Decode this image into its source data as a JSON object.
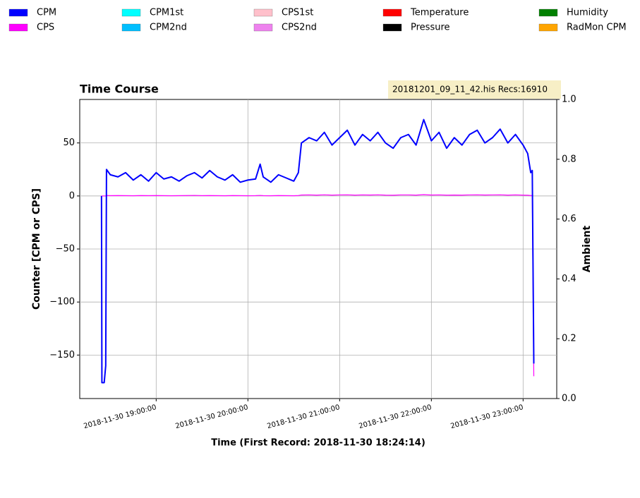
{
  "chart_data": {
    "type": "line",
    "title": "Time Course",
    "info": "20181201_09_11_42.his  Recs:16910",
    "xlabel": "Time (First Record: 2018-11-30 18:24:14)",
    "ylabel": "Counter  [CPM or CPS]",
    "y2label": "Ambient",
    "grid": true,
    "legend": [
      {
        "name": "CPM",
        "color": "#0000ff"
      },
      {
        "name": "CPS",
        "color": "#ff00ff"
      },
      {
        "name": "CPM1st",
        "color": "#00ffff"
      },
      {
        "name": "CPM2nd",
        "color": "#00bfff"
      },
      {
        "name": "CPS1st",
        "color": "#ffc0cb"
      },
      {
        "name": "CPS2nd",
        "color": "#ee82ee"
      },
      {
        "name": "Temperature",
        "color": "#ff0000"
      },
      {
        "name": "Pressure",
        "color": "#000000"
      },
      {
        "name": "Humidity",
        "color": "#008000"
      },
      {
        "name": "RadMon CPM",
        "color": "#ffa500"
      }
    ],
    "xlim": [
      "2018-11-30 18:10:00",
      "2018-11-30 23:22:00"
    ],
    "xticks": [
      {
        "value": "2018-11-30 19:00:00",
        "label": "2018-11-30  19:00:00"
      },
      {
        "value": "2018-11-30 20:00:00",
        "label": "2018-11-30  20:00:00"
      },
      {
        "value": "2018-11-30 21:00:00",
        "label": "2018-11-30  21:00:00"
      },
      {
        "value": "2018-11-30 22:00:00",
        "label": "2018-11-30  22:00:00"
      },
      {
        "value": "2018-11-30 23:00:00",
        "label": "2018-11-30  23:00:00"
      }
    ],
    "ylim": [
      -191,
      91
    ],
    "yticks": [
      {
        "value": -150,
        "label": "−150"
      },
      {
        "value": -100,
        "label": "−100"
      },
      {
        "value": -50,
        "label": "−50"
      },
      0,
      50
    ],
    "y2lim": [
      0,
      1
    ],
    "y2ticks": [
      {
        "value": 0,
        "label": "0.0"
      },
      {
        "value": 0.2,
        "label": "0.2"
      },
      {
        "value": 0.4,
        "label": "0.4"
      },
      {
        "value": 0.6,
        "label": "0.6"
      },
      {
        "value": 0.8,
        "label": "0.8"
      },
      {
        "value": 1,
        "label": "1.0"
      }
    ],
    "x": [
      "2018-11-30 18:24:14",
      "2018-11-30 18:24:30",
      "2018-11-30 18:26:00",
      "2018-11-30 18:27:00",
      "2018-11-30 18:27:30",
      "2018-11-30 18:30:00",
      "2018-11-30 18:35:00",
      "2018-11-30 18:40:00",
      "2018-11-30 18:45:00",
      "2018-11-30 18:50:00",
      "2018-11-30 18:55:00",
      "2018-11-30 19:00:00",
      "2018-11-30 19:05:00",
      "2018-11-30 19:10:00",
      "2018-11-30 19:15:00",
      "2018-11-30 19:20:00",
      "2018-11-30 19:25:00",
      "2018-11-30 19:30:00",
      "2018-11-30 19:35:00",
      "2018-11-30 19:40:00",
      "2018-11-30 19:45:00",
      "2018-11-30 19:50:00",
      "2018-11-30 19:55:00",
      "2018-11-30 20:00:00",
      "2018-11-30 20:05:00",
      "2018-11-30 20:08:00",
      "2018-11-30 20:10:00",
      "2018-11-30 20:15:00",
      "2018-11-30 20:20:00",
      "2018-11-30 20:25:00",
      "2018-11-30 20:30:00",
      "2018-11-30 20:33:00",
      "2018-11-30 20:35:00",
      "2018-11-30 20:40:00",
      "2018-11-30 20:45:00",
      "2018-11-30 20:50:00",
      "2018-11-30 20:55:00",
      "2018-11-30 21:00:00",
      "2018-11-30 21:05:00",
      "2018-11-30 21:10:00",
      "2018-11-30 21:15:00",
      "2018-11-30 21:20:00",
      "2018-11-30 21:25:00",
      "2018-11-30 21:30:00",
      "2018-11-30 21:35:00",
      "2018-11-30 21:40:00",
      "2018-11-30 21:45:00",
      "2018-11-30 21:50:00",
      "2018-11-30 21:55:00",
      "2018-11-30 22:00:00",
      "2018-11-30 22:05:00",
      "2018-11-30 22:10:00",
      "2018-11-30 22:15:00",
      "2018-11-30 22:20:00",
      "2018-11-30 22:25:00",
      "2018-11-30 22:30:00",
      "2018-11-30 22:35:00",
      "2018-11-30 22:40:00",
      "2018-11-30 22:45:00",
      "2018-11-30 22:50:00",
      "2018-11-30 22:55:00",
      "2018-11-30 23:00:00",
      "2018-11-30 23:03:00",
      "2018-11-30 23:05:00",
      "2018-11-30 23:06:00",
      "2018-11-30 23:07:00"
    ],
    "series": [
      {
        "name": "CPM",
        "color": "#0000ff",
        "values": [
          0,
          -176,
          -176,
          -160,
          25,
          20,
          18,
          22,
          15,
          20,
          14,
          22,
          16,
          18,
          14,
          19,
          22,
          17,
          24,
          18,
          15,
          20,
          13,
          15,
          16,
          30,
          18,
          13,
          20,
          17,
          14,
          22,
          50,
          55,
          52,
          60,
          48,
          55,
          62,
          48,
          58,
          52,
          60,
          50,
          45,
          55,
          58,
          48,
          72,
          52,
          60,
          45,
          55,
          48,
          58,
          62,
          50,
          55,
          63,
          50,
          58,
          48,
          40,
          22,
          24,
          -158
        ]
      },
      {
        "name": "CPS",
        "color": "#ff00ff",
        "values": [
          0,
          0,
          0,
          0,
          0.5,
          0.3,
          0.4,
          0.3,
          0.2,
          0.4,
          0.3,
          0.4,
          0.3,
          0.2,
          0.3,
          0.4,
          0.5,
          0.3,
          0.4,
          0.3,
          0.2,
          0.4,
          0.3,
          0.2,
          0.3,
          0.5,
          0.3,
          0.2,
          0.4,
          0.3,
          0.2,
          0.4,
          0.9,
          1,
          0.8,
          1.1,
          0.8,
          1,
          1.1,
          0.8,
          1,
          0.9,
          1.1,
          0.8,
          0.7,
          1,
          1,
          0.8,
          1.3,
          0.9,
          1,
          0.8,
          0.9,
          0.8,
          1,
          1.1,
          0.9,
          1,
          1.1,
          0.8,
          1,
          0.8,
          0.7,
          0.4,
          0.4,
          -170
        ]
      }
    ]
  }
}
